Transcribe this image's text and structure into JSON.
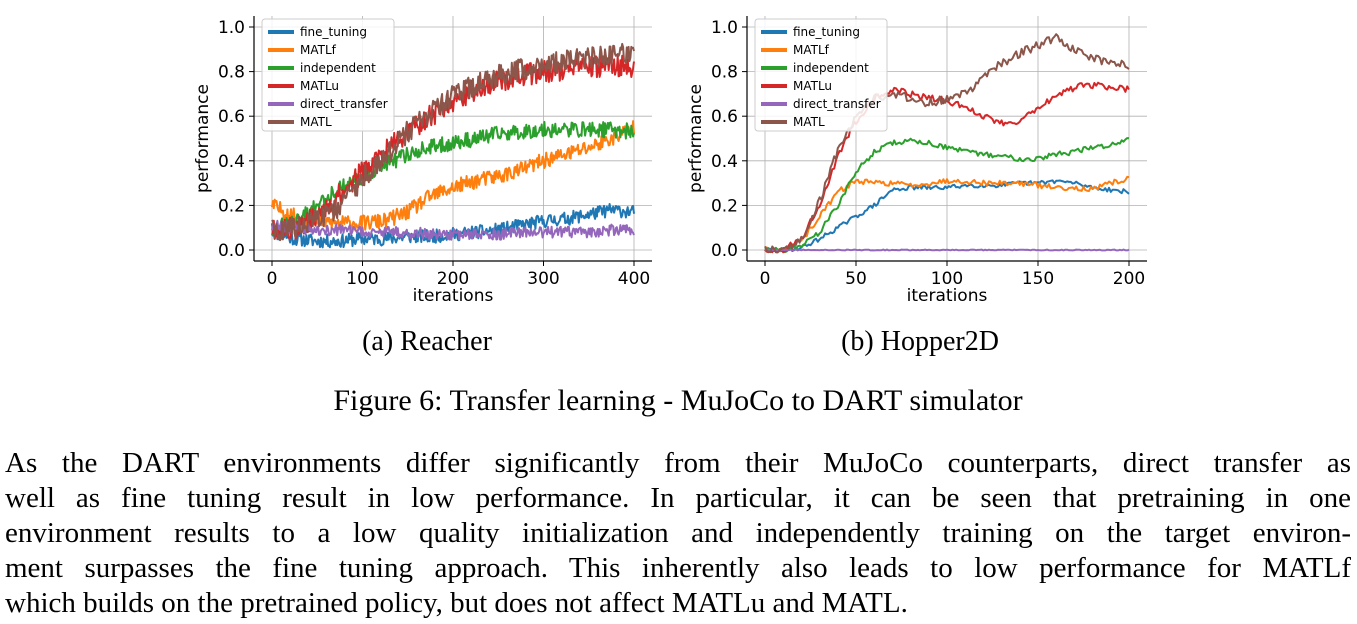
{
  "figure": {
    "caption": "Figure 6: Transfer learning - MuJoCo to DART simulator",
    "subplots": [
      {
        "caption": "(a) Reacher"
      },
      {
        "caption": "(b) Hopper2D"
      }
    ]
  },
  "chart_data": [
    {
      "type": "line",
      "title": "",
      "xlabel": "iterations",
      "ylabel": "performance",
      "xlim": [
        0,
        400
      ],
      "ylim": [
        0.0,
        1.0
      ],
      "xticks": [
        0,
        100,
        200,
        300,
        400
      ],
      "yticks": [
        0.0,
        0.2,
        0.4,
        0.6,
        0.8,
        1.0
      ],
      "xtick_labels": [
        "0",
        "100",
        "200",
        "300",
        "400"
      ],
      "ytick_labels": [
        "0.0",
        "0.2",
        "0.4",
        "0.6",
        "0.8",
        "1.0"
      ],
      "grid": true,
      "legend_position": "top-left",
      "x": [
        0,
        25,
        50,
        75,
        100,
        125,
        150,
        175,
        200,
        225,
        250,
        275,
        300,
        325,
        350,
        375,
        400
      ],
      "series": [
        {
          "name": "fine_tuning",
          "color": "#1f77b4",
          "noise": 0.03,
          "values": [
            0.08,
            0.05,
            0.04,
            0.04,
            0.05,
            0.05,
            0.06,
            0.06,
            0.07,
            0.08,
            0.09,
            0.11,
            0.13,
            0.14,
            0.16,
            0.18,
            0.17
          ]
        },
        {
          "name": "MATLf",
          "color": "#ff7f0e",
          "noise": 0.035,
          "values": [
            0.2,
            0.15,
            0.13,
            0.12,
            0.12,
            0.13,
            0.17,
            0.24,
            0.28,
            0.31,
            0.33,
            0.36,
            0.4,
            0.43,
            0.46,
            0.5,
            0.55
          ]
        },
        {
          "name": "independent",
          "color": "#2ca02c",
          "noise": 0.035,
          "values": [
            0.1,
            0.12,
            0.2,
            0.28,
            0.33,
            0.38,
            0.43,
            0.46,
            0.48,
            0.5,
            0.52,
            0.53,
            0.54,
            0.54,
            0.54,
            0.54,
            0.53
          ]
        },
        {
          "name": "MATLu",
          "color": "#d62728",
          "noise": 0.05,
          "values": [
            0.08,
            0.1,
            0.15,
            0.25,
            0.35,
            0.44,
            0.53,
            0.6,
            0.67,
            0.72,
            0.76,
            0.78,
            0.8,
            0.81,
            0.82,
            0.83,
            0.82
          ]
        },
        {
          "name": "direct_transfer",
          "color": "#9467bd",
          "noise": 0.025,
          "values": [
            0.11,
            0.1,
            0.09,
            0.09,
            0.08,
            0.08,
            0.08,
            0.07,
            0.07,
            0.07,
            0.07,
            0.08,
            0.08,
            0.08,
            0.08,
            0.09,
            0.09
          ]
        },
        {
          "name": "MATL",
          "color": "#8c564b",
          "noise": 0.05,
          "values": [
            0.09,
            0.1,
            0.13,
            0.2,
            0.32,
            0.42,
            0.53,
            0.61,
            0.69,
            0.74,
            0.78,
            0.81,
            0.83,
            0.85,
            0.86,
            0.87,
            0.88
          ]
        }
      ]
    },
    {
      "type": "line",
      "title": "",
      "xlabel": "iterations",
      "ylabel": "performance",
      "xlim": [
        0,
        200
      ],
      "ylim": [
        0.0,
        1.0
      ],
      "xticks": [
        0,
        50,
        100,
        150,
        200
      ],
      "yticks": [
        0.0,
        0.2,
        0.4,
        0.6,
        0.8,
        1.0
      ],
      "xtick_labels": [
        "0",
        "50",
        "100",
        "150",
        "200"
      ],
      "ytick_labels": [
        "0.0",
        "0.2",
        "0.4",
        "0.6",
        "0.8",
        "1.0"
      ],
      "grid": true,
      "legend_position": "top-left",
      "x": [
        0,
        10,
        20,
        30,
        40,
        50,
        60,
        70,
        80,
        90,
        100,
        110,
        120,
        130,
        140,
        150,
        160,
        170,
        180,
        190,
        200
      ],
      "series": [
        {
          "name": "fine_tuning",
          "color": "#1f77b4",
          "noise": 0.01,
          "values": [
            0.0,
            0.0,
            0.01,
            0.05,
            0.1,
            0.15,
            0.2,
            0.27,
            0.28,
            0.28,
            0.28,
            0.29,
            0.29,
            0.29,
            0.3,
            0.3,
            0.31,
            0.3,
            0.28,
            0.27,
            0.26
          ]
        },
        {
          "name": "MATLf",
          "color": "#ff7f0e",
          "noise": 0.012,
          "values": [
            0.0,
            0.0,
            0.04,
            0.15,
            0.26,
            0.31,
            0.3,
            0.3,
            0.29,
            0.3,
            0.31,
            0.31,
            0.3,
            0.3,
            0.3,
            0.29,
            0.28,
            0.28,
            0.27,
            0.3,
            0.32
          ]
        },
        {
          "name": "independent",
          "color": "#2ca02c",
          "noise": 0.012,
          "values": [
            0.0,
            0.0,
            0.02,
            0.08,
            0.2,
            0.35,
            0.44,
            0.48,
            0.49,
            0.48,
            0.46,
            0.44,
            0.43,
            0.42,
            0.41,
            0.41,
            0.43,
            0.44,
            0.46,
            0.47,
            0.5
          ]
        },
        {
          "name": "MATLu",
          "color": "#d62728",
          "noise": 0.015,
          "values": [
            0.0,
            0.0,
            0.05,
            0.2,
            0.42,
            0.58,
            0.68,
            0.72,
            0.7,
            0.68,
            0.67,
            0.64,
            0.6,
            0.57,
            0.58,
            0.64,
            0.69,
            0.73,
            0.74,
            0.73,
            0.72
          ]
        },
        {
          "name": "direct_transfer",
          "color": "#9467bd",
          "noise": 0.002,
          "values": [
            0.0,
            0.0,
            0.0,
            0.0,
            0.0,
            0.0,
            0.0,
            0.0,
            0.0,
            0.0,
            0.0,
            0.0,
            0.0,
            0.0,
            0.0,
            0.0,
            0.0,
            0.0,
            0.0,
            0.0,
            0.0
          ]
        },
        {
          "name": "MATL",
          "color": "#8c564b",
          "noise": 0.02,
          "values": [
            0.0,
            0.0,
            0.05,
            0.22,
            0.45,
            0.6,
            0.68,
            0.7,
            0.68,
            0.66,
            0.68,
            0.7,
            0.77,
            0.84,
            0.88,
            0.92,
            0.95,
            0.9,
            0.86,
            0.84,
            0.83
          ]
        }
      ]
    }
  ],
  "paragraph": {
    "lines": [
      "As the DART environments differ significantly from their MuJoCo counterparts, direct transfer as",
      "well as fine tuning result in low performance. In particular, it can be seen that pretraining in one",
      "environment results to a low quality initialization and independently training on the target environ-",
      "ment surpasses the fine tuning approach. This inherently also leads to low performance for MATLf",
      "which builds on the pretrained policy, but does not affect MATLu and MATL."
    ]
  }
}
